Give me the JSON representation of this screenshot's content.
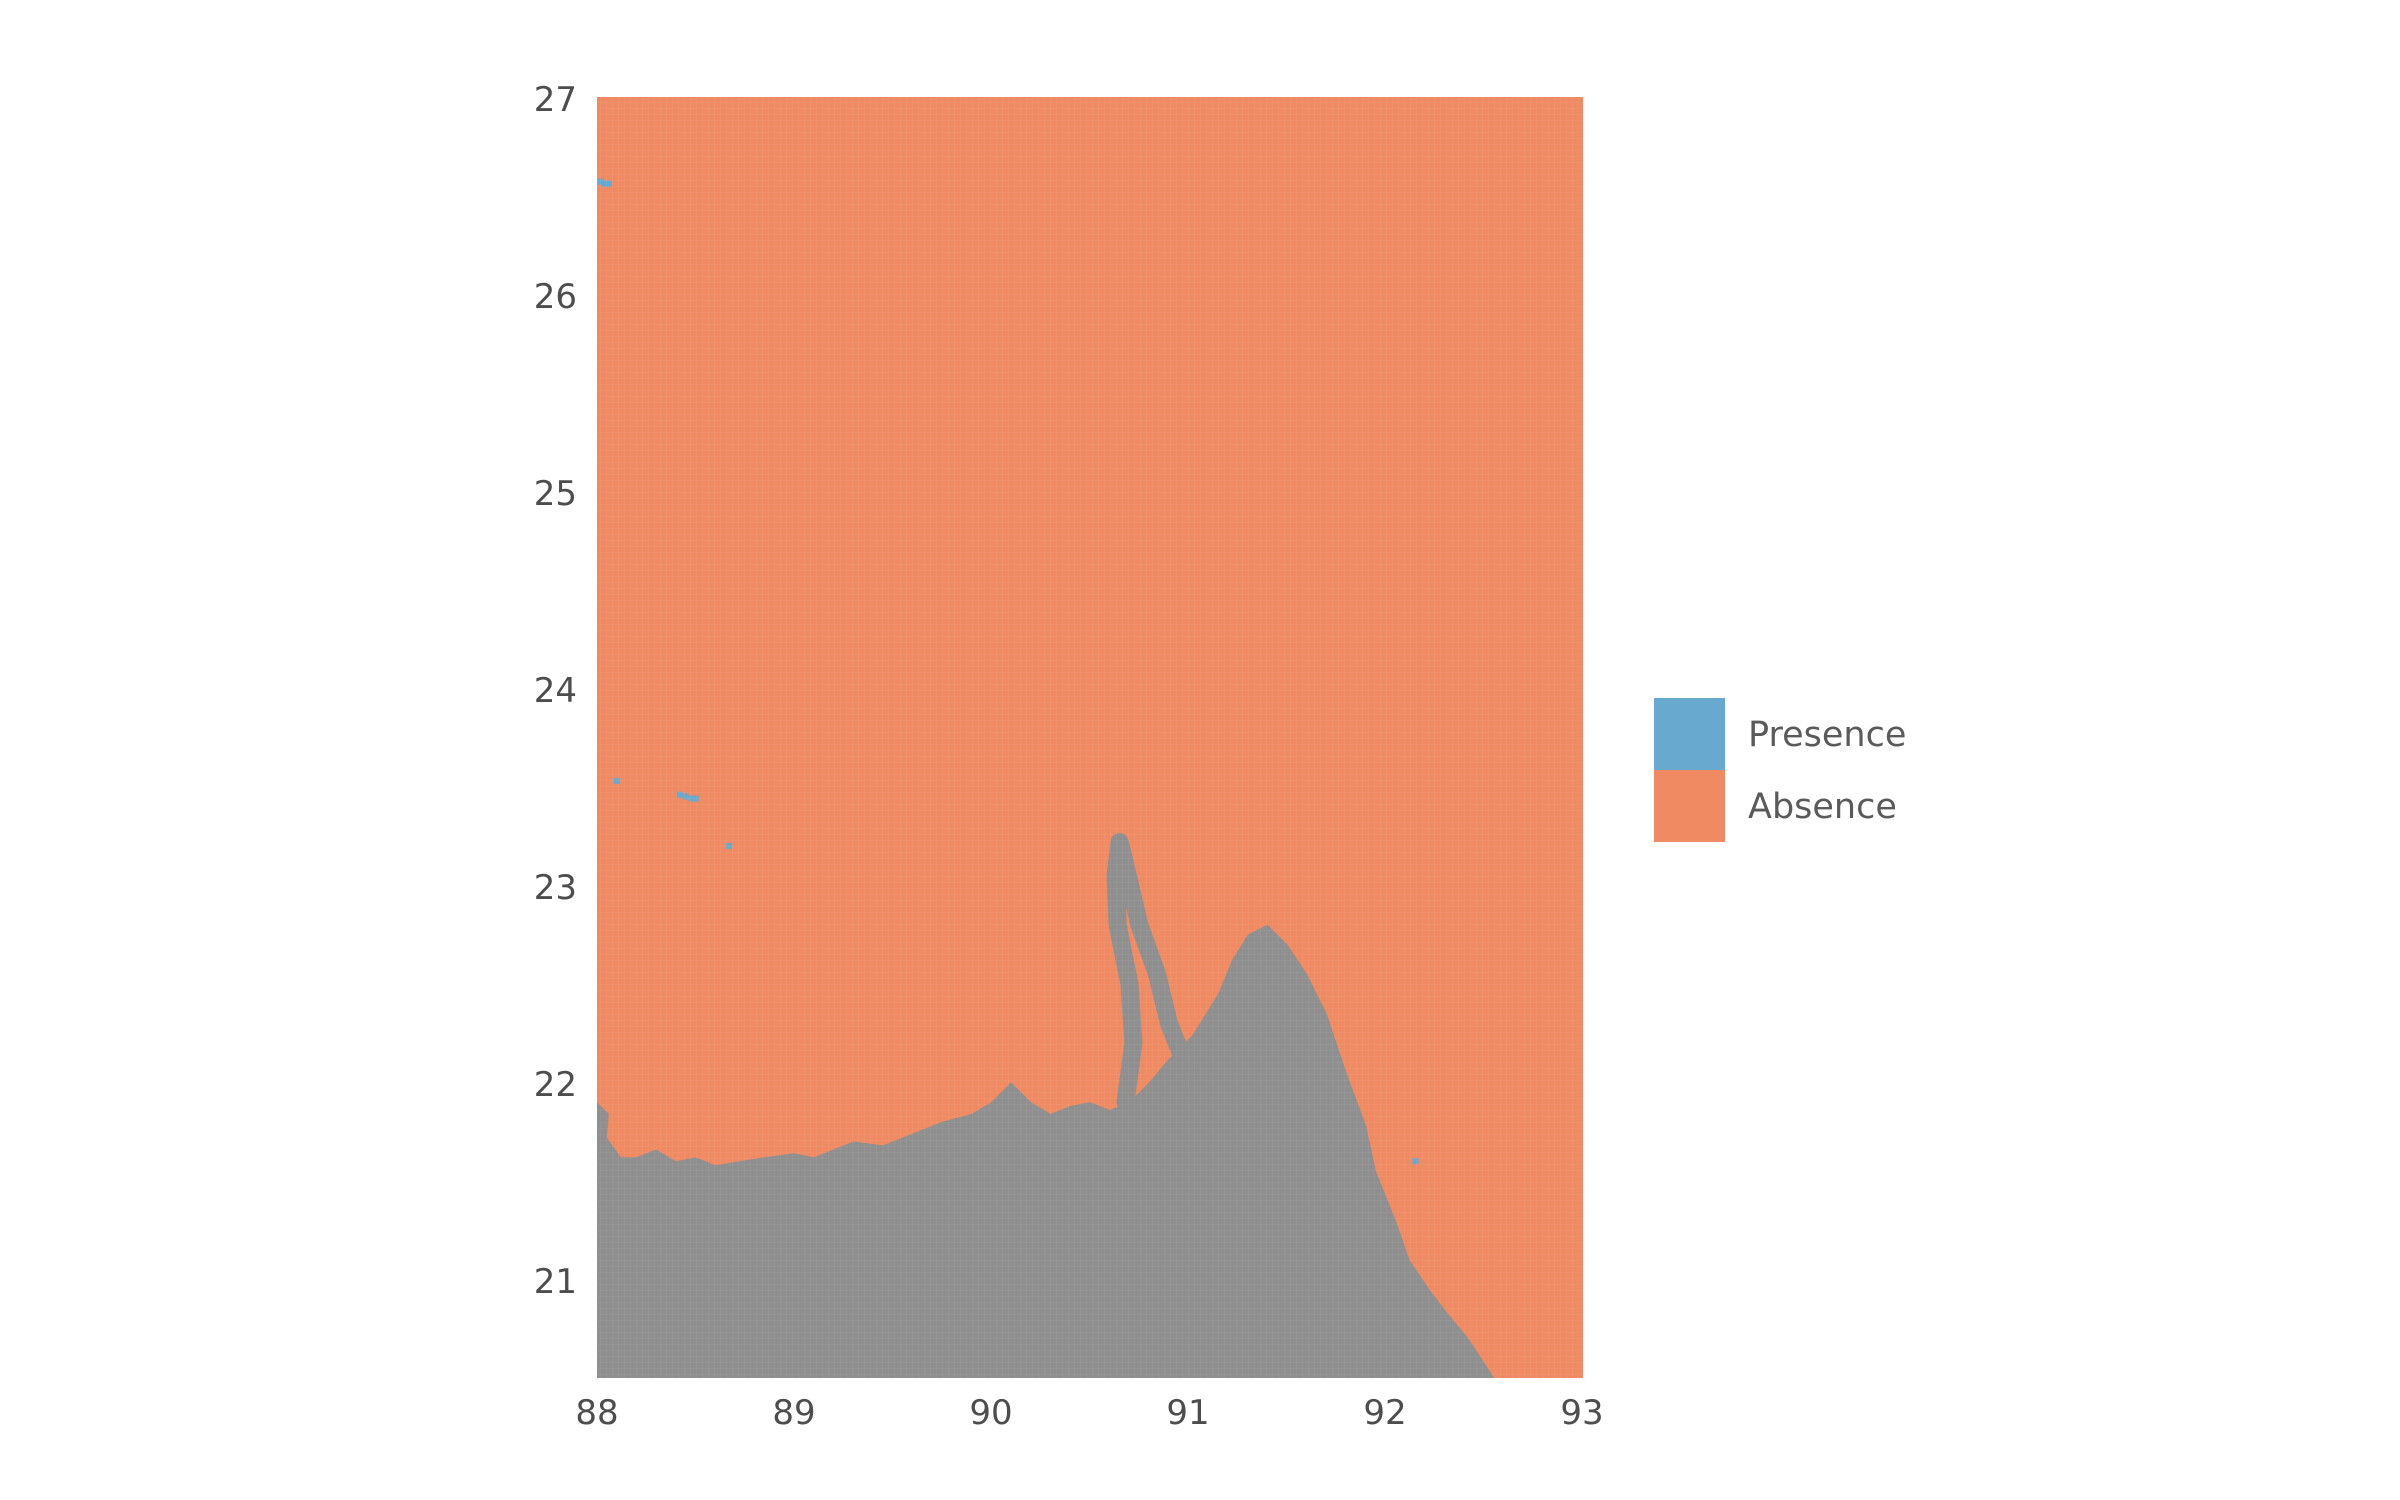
{
  "map": {
    "type": "raster",
    "x_range": [
      88,
      93
    ],
    "y_range": [
      20.5,
      27
    ],
    "x_ticks": [
      "88",
      "89",
      "90",
      "91",
      "92",
      "93"
    ],
    "y_ticks": [
      "21",
      "22",
      "23",
      "24",
      "25",
      "26",
      "27"
    ],
    "colors": {
      "presence": "#67a9cf",
      "absence": "#ef8a62",
      "na": "#8f8f8f"
    },
    "legend": [
      {
        "label": "Presence",
        "color": "#67a9cf"
      },
      {
        "label": "Absence",
        "color": "#ef8a62"
      }
    ],
    "coastline_lonlat": [
      [
        88.0,
        21.9
      ],
      [
        88.06,
        21.84
      ],
      [
        88.05,
        21.72
      ],
      [
        88.12,
        21.62
      ],
      [
        88.2,
        21.62
      ],
      [
        88.3,
        21.66
      ],
      [
        88.4,
        21.6
      ],
      [
        88.5,
        21.62
      ],
      [
        88.6,
        21.58
      ],
      [
        88.72,
        21.6
      ],
      [
        88.85,
        21.62
      ],
      [
        89.0,
        21.64
      ],
      [
        89.1,
        21.62
      ],
      [
        89.2,
        21.66
      ],
      [
        89.3,
        21.7
      ],
      [
        89.45,
        21.68
      ],
      [
        89.6,
        21.74
      ],
      [
        89.75,
        21.8
      ],
      [
        89.9,
        21.84
      ],
      [
        90.0,
        21.9
      ],
      [
        90.1,
        22.0
      ],
      [
        90.2,
        21.9
      ],
      [
        90.3,
        21.84
      ],
      [
        90.4,
        21.88
      ],
      [
        90.5,
        21.9
      ],
      [
        90.6,
        21.86
      ],
      [
        90.7,
        21.9
      ],
      [
        90.8,
        22.0
      ],
      [
        90.9,
        22.12
      ],
      [
        91.02,
        22.24
      ],
      [
        91.15,
        22.45
      ],
      [
        91.22,
        22.62
      ],
      [
        91.3,
        22.75
      ],
      [
        91.4,
        22.8
      ],
      [
        91.5,
        22.7
      ],
      [
        91.6,
        22.55
      ],
      [
        91.7,
        22.35
      ],
      [
        91.8,
        22.05
      ],
      [
        91.9,
        21.78
      ],
      [
        91.95,
        21.55
      ],
      [
        92.05,
        21.3
      ],
      [
        92.12,
        21.1
      ],
      [
        92.22,
        20.95
      ],
      [
        92.32,
        20.82
      ],
      [
        92.42,
        20.7
      ],
      [
        92.55,
        20.5
      ]
    ],
    "river_lonlat": [
      [
        90.68,
        21.9
      ],
      [
        90.72,
        22.2
      ],
      [
        90.7,
        22.5
      ],
      [
        90.64,
        22.8
      ],
      [
        90.63,
        23.05
      ],
      [
        90.65,
        23.22
      ],
      [
        90.68,
        23.1
      ],
      [
        90.75,
        22.8
      ],
      [
        90.84,
        22.55
      ],
      [
        90.9,
        22.3
      ],
      [
        91.0,
        22.05
      ]
    ],
    "presence_cells_lonlat": [
      [
        88.02,
        26.57
      ],
      [
        88.04,
        26.56
      ],
      [
        88.06,
        26.56
      ],
      [
        88.42,
        23.46
      ],
      [
        88.45,
        23.45
      ],
      [
        88.48,
        23.44
      ],
      [
        88.5,
        23.44
      ],
      [
        88.1,
        23.53
      ],
      [
        88.67,
        23.2
      ],
      [
        92.15,
        21.6
      ]
    ]
  }
}
